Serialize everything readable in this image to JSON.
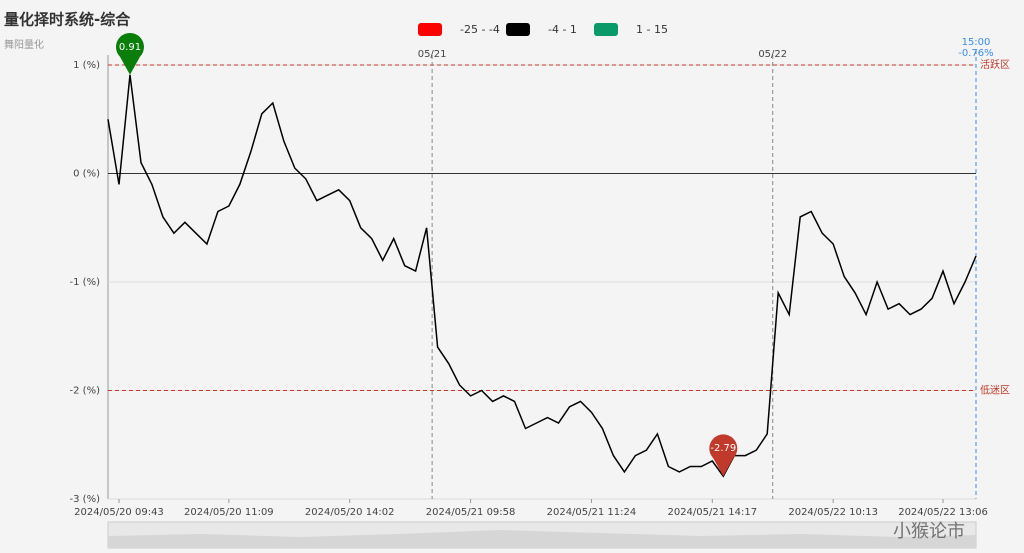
{
  "chart_data": {
    "type": "line",
    "title": "量化择时系统-综合",
    "subtitle": "舞阳量化",
    "watermark": "小猴论市",
    "legend": [
      {
        "name": "-25 - -4",
        "color": "#ff0000"
      },
      {
        "name": "-4 - 1",
        "color": "#000000"
      },
      {
        "name": "1 - 15",
        "color": "#0a9a6a"
      }
    ],
    "categories": [
      null,
      "2024/05/20 09:43",
      null,
      null,
      null,
      null,
      null,
      null,
      null,
      null,
      null,
      "2024/05/20 11:09",
      null,
      null,
      null,
      null,
      null,
      null,
      null,
      null,
      null,
      null,
      "2024/05/20 14:02",
      null,
      null,
      null,
      null,
      null,
      null,
      null,
      null,
      null,
      null,
      "2024/05/21 09:58",
      null,
      null,
      null,
      null,
      null,
      null,
      null,
      null,
      null,
      null,
      "2024/05/21 11:24",
      null,
      null,
      null,
      null,
      null,
      null,
      null,
      null,
      null,
      null,
      "2024/05/21 14:17",
      null,
      null,
      null,
      null,
      null,
      null,
      null,
      null,
      null,
      null,
      "2024/05/22 10:13",
      null,
      null,
      null,
      null,
      null,
      null,
      null,
      null,
      null,
      "2024/05/22 13:06",
      null,
      null,
      null
    ],
    "series": [
      {
        "name": "综合",
        "color": "#000000",
        "values": [
          0.5,
          -0.1,
          0.91,
          0.1,
          -0.1,
          -0.4,
          -0.55,
          -0.45,
          -0.55,
          -0.65,
          -0.35,
          -0.3,
          -0.1,
          0.2,
          0.55,
          0.65,
          0.3,
          0.05,
          -0.05,
          -0.25,
          -0.2,
          -0.15,
          -0.25,
          -0.5,
          -0.6,
          -0.8,
          -0.6,
          -0.85,
          -0.9,
          -0.5,
          -1.6,
          -1.75,
          -1.95,
          -2.05,
          -2.0,
          -2.1,
          -2.05,
          -2.1,
          -2.35,
          -2.3,
          -2.25,
          -2.3,
          -2.15,
          -2.1,
          -2.2,
          -2.35,
          -2.6,
          -2.75,
          -2.6,
          -2.55,
          -2.4,
          -2.7,
          -2.75,
          -2.7,
          -2.7,
          -2.65,
          -2.79,
          -2.6,
          -2.6,
          -2.55,
          -2.4,
          -1.1,
          -1.3,
          -0.4,
          -0.35,
          -0.55,
          -0.65,
          -0.95,
          -1.1,
          -1.3,
          -1.0,
          -1.25,
          -1.2,
          -1.3,
          -1.25,
          -1.15,
          -0.9,
          -1.2,
          -1.0,
          -0.76
        ]
      }
    ],
    "max_color": "#0a7d0a",
    "min_color": "#c0392b",
    "ylim": [
      -3,
      1
    ],
    "yticks": [
      {
        "value": -3,
        "label": "-3 (%)"
      },
      {
        "value": -2,
        "label": "-2 (%)"
      },
      {
        "value": -1,
        "label": "-1 (%)"
      },
      {
        "value": 0,
        "label": "0 (%)"
      },
      {
        "value": 1,
        "label": "1 (%)"
      }
    ],
    "grid": true,
    "mark_lines": [
      {
        "value": 1,
        "label": "活跃区"
      },
      {
        "value": -2,
        "label": "低迷区"
      }
    ],
    "day_labels": [
      "05/21",
      "05/22"
    ],
    "end_label": {
      "time": "15:00",
      "text": "-0.76%"
    }
  }
}
